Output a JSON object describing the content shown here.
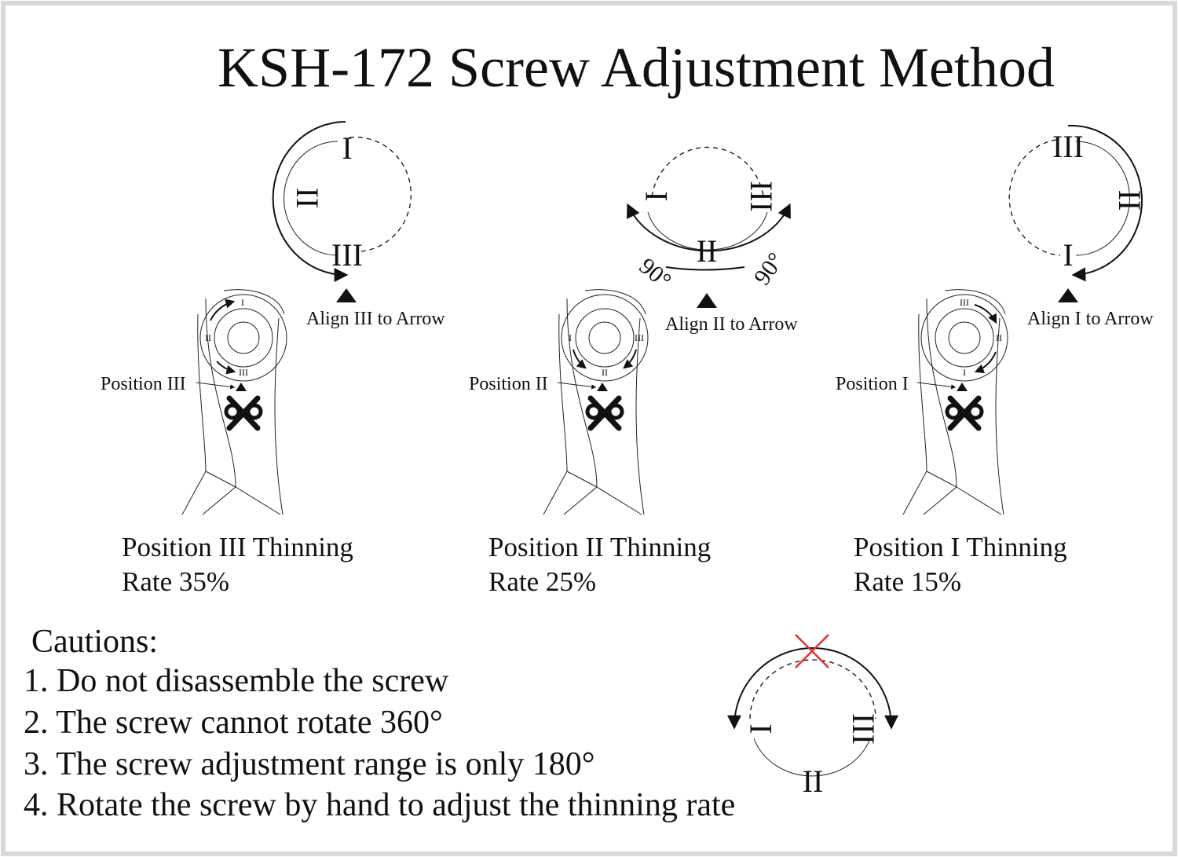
{
  "title": "KSH-172  Screw Adjustment Method",
  "panels": [
    {
      "dial_top": "I",
      "dial_side": "II",
      "dial_bottom": "III",
      "align_label": "Align III to Arrow",
      "position_label": "Position III",
      "caption_line1": "Position III Thinning",
      "caption_line2": "Rate 35%",
      "ring_marks": [
        "I",
        "II",
        "III"
      ]
    },
    {
      "dial_left": "I",
      "dial_right": "III",
      "dial_bottom": "II",
      "angle_left": "90°",
      "angle_right": "90°",
      "align_label": "Align II to Arrow",
      "position_label": "Position II",
      "caption_line1": "Position II Thinning",
      "caption_line2": "Rate 25%",
      "ring_marks": [
        "I",
        "II",
        "III"
      ]
    },
    {
      "dial_top": "III",
      "dial_side": "II",
      "dial_bottom": "I",
      "align_label": "Align I to Arrow",
      "position_label": "Position I",
      "caption_line1": "Position I Thinning",
      "caption_line2": "Rate 15%",
      "ring_marks": [
        "III",
        "II",
        "I"
      ]
    }
  ],
  "cautions": {
    "heading": "Cautions:",
    "items": [
      "1. Do not disassemble the screw",
      "2. The screw cannot rotate 360°",
      "3. The screw adjustment range is only 180°",
      "4. Rotate the screw by hand to adjust the thinning rate"
    ]
  },
  "range_diagram": {
    "left": "I",
    "bottom": "II",
    "right": "III"
  },
  "colors": {
    "forbidden_mark": "#e0322e",
    "border": "#d9d9d9"
  }
}
